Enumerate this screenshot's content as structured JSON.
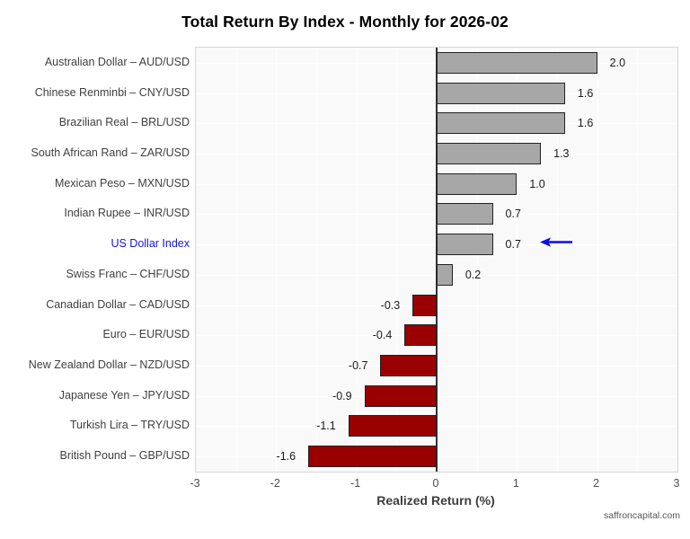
{
  "title": "Total Return By Index - Monthly for 2026-02",
  "footer": "saffroncapital.com",
  "chart_data": {
    "type": "bar",
    "orientation": "horizontal",
    "title": "Total Return By Index - Monthly for 2026-02",
    "xlabel": "Realized Return (%)",
    "ylabel": "",
    "xlim": [
      -3,
      3
    ],
    "xticks": [
      -3,
      -2,
      -1,
      0,
      1,
      2,
      3
    ],
    "xtick_labels": [
      "-3",
      "-2",
      "-1",
      "0",
      "1",
      "2",
      "3"
    ],
    "grid": true,
    "legend": "none",
    "categories": [
      "Australian Dollar – AUD/USD",
      "Chinese Renminbi – CNY/USD",
      "Brazilian Real – BRL/USD",
      "South African Rand – ZAR/USD",
      "Mexican Peso – MXN/USD",
      "Indian Rupee – INR/USD",
      "US Dollar Index",
      "Swiss Franc – CHF/USD",
      "Canadian Dollar – CAD/USD",
      "Euro – EUR/USD",
      "New Zealand Dollar – NZD/USD",
      "Japanese Yen – JPY/USD",
      "Turkish Lira – TRY/USD",
      "British Pound – GBP/USD"
    ],
    "values": [
      2.0,
      1.6,
      1.6,
      1.3,
      1.0,
      0.7,
      0.7,
      0.2,
      -0.3,
      -0.4,
      -0.7,
      -0.9,
      -1.1,
      -1.6
    ],
    "value_labels": [
      "2.0",
      "1.6",
      "1.6",
      "1.3",
      "1.0",
      "0.7",
      "0.7",
      "0.2",
      "-0.3",
      "-0.4",
      "-0.7",
      "-0.9",
      "-1.1",
      "-1.6"
    ],
    "highlight": {
      "category": "US Dollar Index",
      "index": 6,
      "arrow": true
    },
    "colors": {
      "positive_bar": "#a7a7a7",
      "negative_bar": "#9b0000",
      "bar_border": "#222222",
      "highlight_text": "#1414e0",
      "arrow": "#0b0bee",
      "panel_background": "#f9f9f9",
      "gridline": "#ffffff",
      "zero_line": "#333333"
    }
  }
}
